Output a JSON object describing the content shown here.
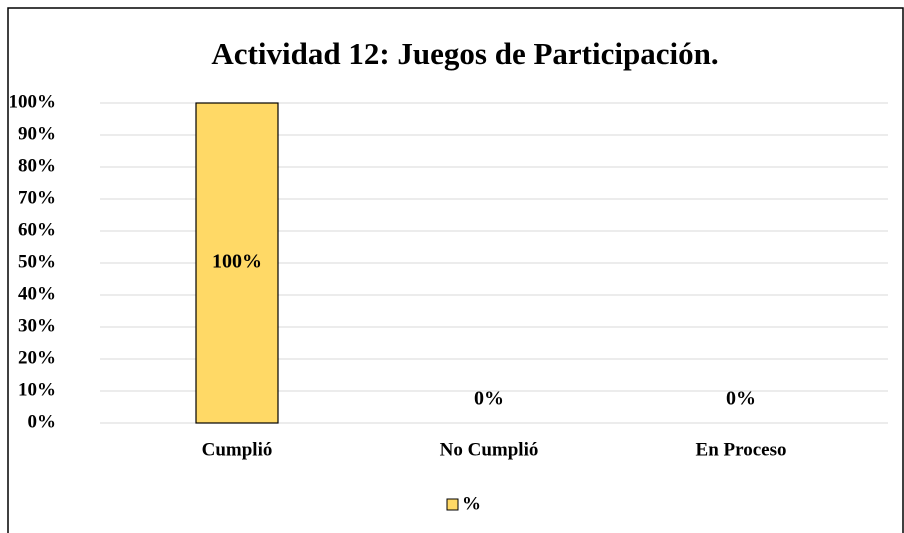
{
  "chart_data": {
    "type": "bar",
    "title": "Actividad 12: Juegos de Participación.",
    "categories": [
      "Cumplió",
      "No Cumplió",
      "En Proceso"
    ],
    "series": [
      {
        "name": "%",
        "color": "#ffd966",
        "values": [
          100,
          0,
          0
        ],
        "value_labels": [
          "100%",
          "0%",
          "0%"
        ]
      }
    ],
    "ylim": [
      0,
      100
    ],
    "yticks": [
      {
        "value": 0,
        "label": "0%"
      },
      {
        "value": 10,
        "label": "10%"
      },
      {
        "value": 20,
        "label": "20%"
      },
      {
        "value": 30,
        "label": "30%"
      },
      {
        "value": 40,
        "label": "40%"
      },
      {
        "value": 50,
        "label": "50%"
      },
      {
        "value": 60,
        "label": "60%"
      },
      {
        "value": 70,
        "label": "70%"
      },
      {
        "value": 80,
        "label": "80%"
      },
      {
        "value": 90,
        "label": "90%"
      },
      {
        "value": 100,
        "label": "100%"
      }
    ],
    "grid": true,
    "legend": "bottom"
  }
}
